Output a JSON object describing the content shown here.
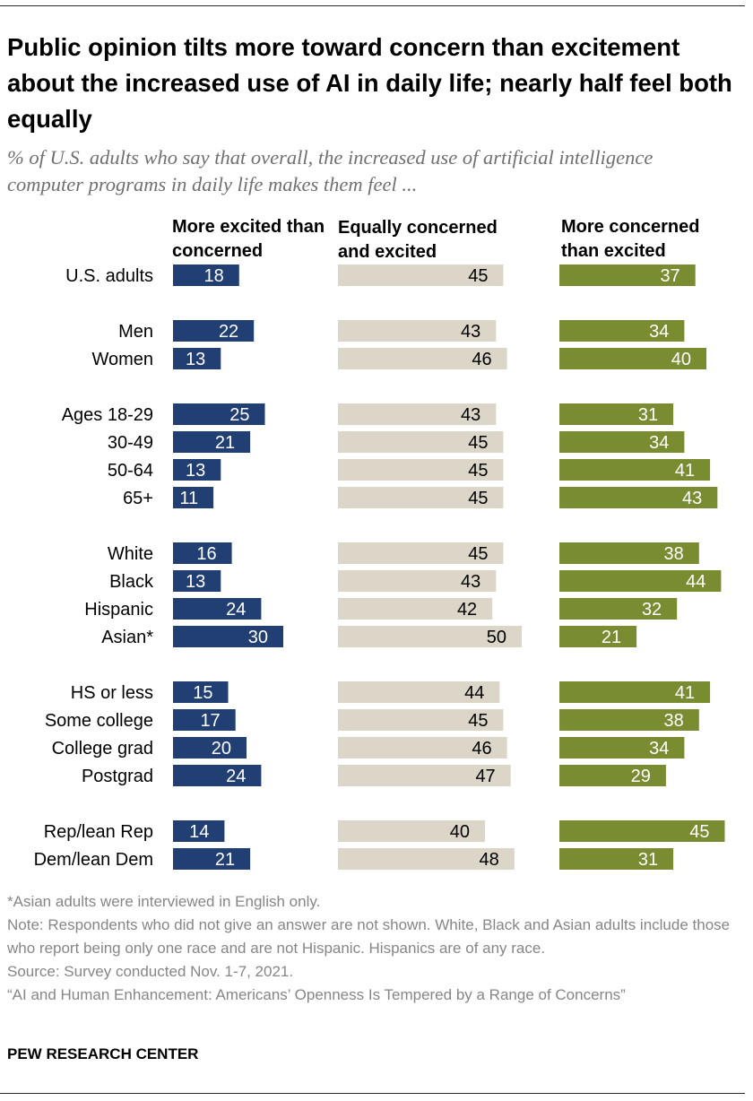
{
  "title": "Public opinion tilts more toward concern than excitement about the increased use of AI in daily life; nearly half feel both equally",
  "subtitle": "% of U.S. adults who say that overall, the increased use of artificial intelligence computer programs in daily life makes them feel ...",
  "colors": {
    "excited": "#213F73",
    "equal": "#DCD6C8",
    "concerned": "#7A8C32"
  },
  "chart_data": {
    "type": "bar",
    "orientation": "horizontal",
    "categories": [
      "U.S. adults",
      "Men",
      "Women",
      "Ages 18-29",
      "30-49",
      "50-64",
      "65+",
      "White",
      "Black",
      "Hispanic",
      "Asian*",
      "HS or less",
      "Some college",
      "College grad",
      "Postgrad",
      "Rep/lean Rep",
      "Dem/lean Dem"
    ],
    "groups": [
      [
        0
      ],
      [
        1,
        2
      ],
      [
        3,
        4,
        5,
        6
      ],
      [
        7,
        8,
        9,
        10
      ],
      [
        11,
        12,
        13,
        14
      ],
      [
        15,
        16
      ]
    ],
    "series": [
      {
        "name": "More excited than concerned",
        "values": [
          18,
          22,
          13,
          25,
          21,
          13,
          11,
          16,
          13,
          24,
          30,
          15,
          17,
          20,
          24,
          14,
          21
        ]
      },
      {
        "name": "Equally concerned and excited",
        "values": [
          45,
          43,
          46,
          43,
          45,
          45,
          45,
          45,
          43,
          42,
          50,
          44,
          45,
          46,
          47,
          40,
          48
        ]
      },
      {
        "name": "More concerned than excited",
        "values": [
          37,
          34,
          40,
          31,
          34,
          41,
          43,
          38,
          44,
          32,
          21,
          41,
          38,
          34,
          29,
          45,
          31
        ]
      }
    ]
  },
  "notes": {
    "asterisk": "*Asian adults were interviewed in English only.",
    "note": "Note: Respondents who did not give an answer are not shown. White, Black and Asian adults include those who report being only one race and are not Hispanic. Hispanics are of any race.",
    "source": "Source: Survey conducted Nov. 1-7, 2021.",
    "report": "“AI and Human Enhancement: Americans’ Openness Is Tempered by a Range of Concerns”"
  },
  "brand": "PEW RESEARCH CENTER"
}
